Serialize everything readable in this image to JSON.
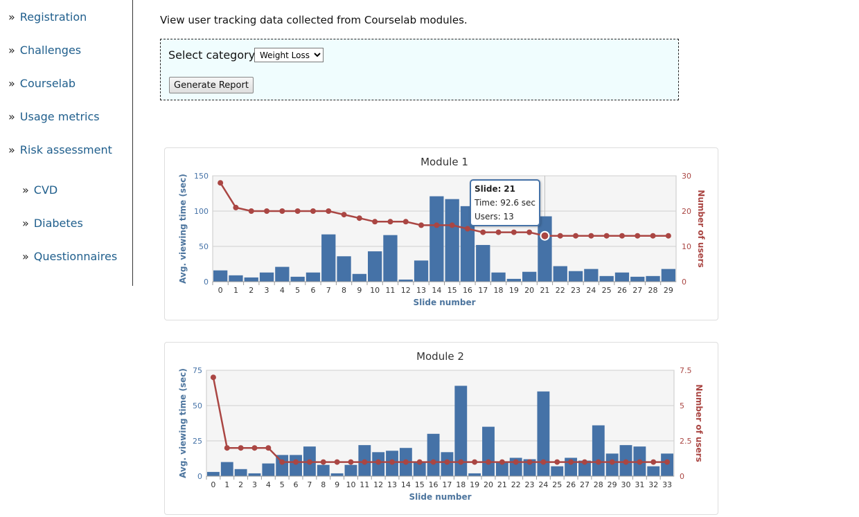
{
  "sidebar": {
    "items": [
      {
        "label": "Registration"
      },
      {
        "label": "Challenges"
      },
      {
        "label": "Courselab"
      },
      {
        "label": "Usage metrics"
      },
      {
        "label": "Risk assessment"
      },
      {
        "label": "CVD"
      },
      {
        "label": "Diabetes"
      },
      {
        "label": "Questionnaires"
      }
    ],
    "bullet": "»"
  },
  "intro": "View user tracking data collected from Courselab modules.",
  "filter": {
    "category_label": "Select category :",
    "selected": "Weight Loss",
    "button_label": "Generate Report"
  },
  "colors": {
    "bar": "#4572a7",
    "line": "#aa4643",
    "link": "#1f5e8c",
    "filter_bg": "#f0fdfe"
  },
  "chart_data": [
    {
      "type": "bar",
      "title": "Module 1",
      "xlabel": "Slide number",
      "ylabel": "Avg. viewing time (sec)",
      "y2label": "Number of users",
      "categories": [
        "0",
        "1",
        "2",
        "3",
        "4",
        "5",
        "6",
        "7",
        "8",
        "9",
        "10",
        "11",
        "12",
        "13",
        "14",
        "15",
        "16",
        "17",
        "18",
        "19",
        "20",
        "21",
        "22",
        "23",
        "24",
        "25",
        "26",
        "27",
        "28",
        "29"
      ],
      "ylim": [
        0,
        150
      ],
      "yticks": [
        "0",
        "50",
        "100",
        "150"
      ],
      "y2lim": [
        0,
        30
      ],
      "y2ticks": [
        "0",
        "10",
        "20",
        "30"
      ],
      "series": [
        {
          "name": "Time",
          "type": "bar",
          "values": [
            16,
            9,
            6,
            13,
            21,
            7,
            13,
            67,
            36,
            11,
            43,
            66,
            3,
            30,
            121,
            117,
            107,
            52,
            13,
            4,
            14,
            92.6,
            22,
            15,
            18,
            8,
            13,
            7,
            8,
            18
          ]
        },
        {
          "name": "Users",
          "type": "line",
          "axis": "right",
          "values": [
            28,
            21,
            20,
            20,
            20,
            20,
            20,
            20,
            19,
            18,
            17,
            17,
            17,
            16,
            16,
            16,
            15,
            14,
            14,
            14,
            14,
            13,
            13,
            13,
            13,
            13,
            13,
            13,
            13,
            13
          ]
        }
      ],
      "grid": true,
      "tooltip": {
        "slide_label": "Slide:",
        "slide": "21",
        "time_label": "Time:",
        "time": "92.6 sec",
        "users_label": "Users:",
        "users": "13"
      }
    },
    {
      "type": "bar",
      "title": "Module 2",
      "xlabel": "Slide number",
      "ylabel": "Avg. viewing time (sec)",
      "y2label": "Number of users",
      "categories": [
        "0",
        "1",
        "2",
        "3",
        "4",
        "5",
        "6",
        "7",
        "8",
        "9",
        "10",
        "11",
        "12",
        "13",
        "14",
        "15",
        "16",
        "17",
        "18",
        "19",
        "20",
        "21",
        "22",
        "23",
        "24",
        "25",
        "26",
        "27",
        "28",
        "29",
        "30",
        "31",
        "32",
        "33"
      ],
      "ylim": [
        0,
        75
      ],
      "yticks": [
        "0",
        "25",
        "50",
        "75"
      ],
      "y2lim": [
        0,
        7.5
      ],
      "y2ticks": [
        "0",
        "2.5",
        "5",
        "7.5"
      ],
      "series": [
        {
          "name": "Time",
          "type": "bar",
          "values": [
            3,
            10,
            5,
            2,
            9,
            15,
            15,
            21,
            8,
            2,
            8,
            22,
            17,
            18,
            20,
            10,
            30,
            17,
            64,
            2,
            35,
            10,
            13,
            12,
            60,
            7,
            13,
            11,
            36,
            16,
            22,
            21,
            7,
            16
          ]
        },
        {
          "name": "Users",
          "type": "line",
          "axis": "right",
          "values": [
            7,
            2,
            2,
            2,
            2,
            1,
            1,
            1,
            1,
            1,
            1,
            1,
            1,
            1,
            1,
            1,
            1,
            1,
            1,
            1,
            1,
            1,
            1,
            1,
            1,
            1,
            1,
            1,
            1,
            1,
            1,
            1,
            1,
            1
          ]
        }
      ],
      "grid": true
    }
  ]
}
